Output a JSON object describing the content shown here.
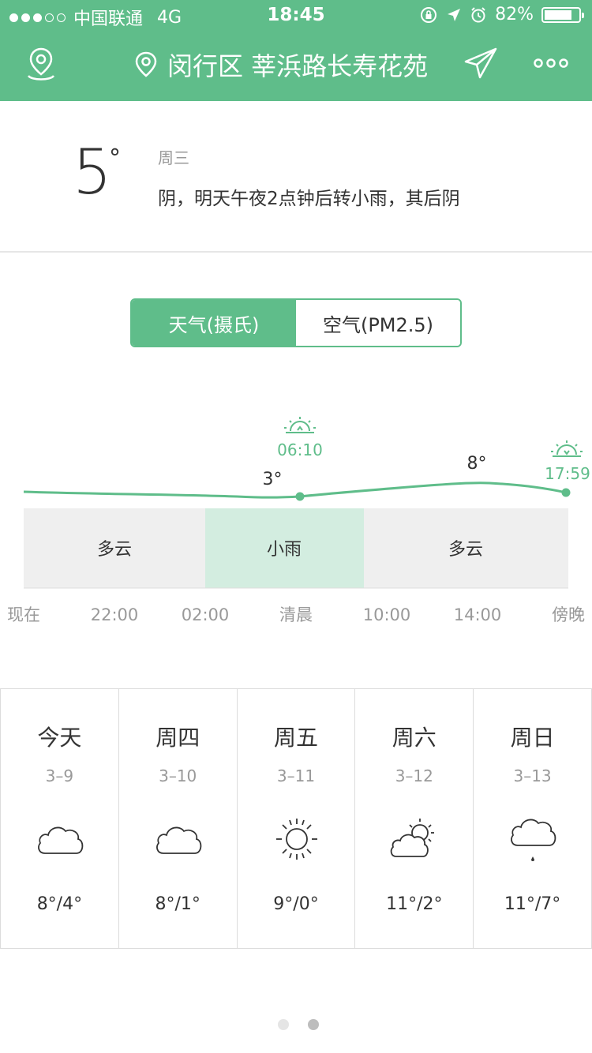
{
  "status_bar": {
    "carrier": "中国联通",
    "network": "4G",
    "time": "18:45",
    "battery": "82%"
  },
  "header": {
    "location": "闵行区 莘浜路长寿花苑"
  },
  "current": {
    "temperature": "5",
    "degree_symbol": "°",
    "weekday": "周三",
    "summary": "阴，明天午夜2点钟后转小雨，其后阴"
  },
  "tabs": [
    {
      "label": "天气(摄氏)",
      "active": true
    },
    {
      "label": "空气(PM2.5)",
      "active": false
    }
  ],
  "hourly": {
    "sunrise_time": "06:10",
    "sunset_time": "17:59",
    "min_label": "3°",
    "max_label": "8°",
    "conditions": [
      {
        "label": "多云",
        "highlight": false
      },
      {
        "label": "小雨",
        "highlight": true
      },
      {
        "label": "多云",
        "highlight": false
      }
    ],
    "time_labels": [
      "现在",
      "22:00",
      "02:00",
      "清晨",
      "10:00",
      "14:00",
      "傍晚"
    ]
  },
  "forecast": [
    {
      "day": "今天",
      "date": "3–9",
      "icon": "cloud-icon",
      "temps": "8°/4°"
    },
    {
      "day": "周四",
      "date": "3–10",
      "icon": "cloud-icon",
      "temps": "8°/1°"
    },
    {
      "day": "周五",
      "date": "3–11",
      "icon": "sun-icon",
      "temps": "9°/0°"
    },
    {
      "day": "周六",
      "date": "3–12",
      "icon": "partly-cloudy-icon",
      "temps": "11°/2°"
    },
    {
      "day": "周日",
      "date": "3–13",
      "icon": "rain-cloud-icon",
      "temps": "11°/7°"
    }
  ],
  "colors": {
    "accent": "#5fbd8a",
    "highlight": "#d3ede0",
    "band": "#efefef"
  }
}
